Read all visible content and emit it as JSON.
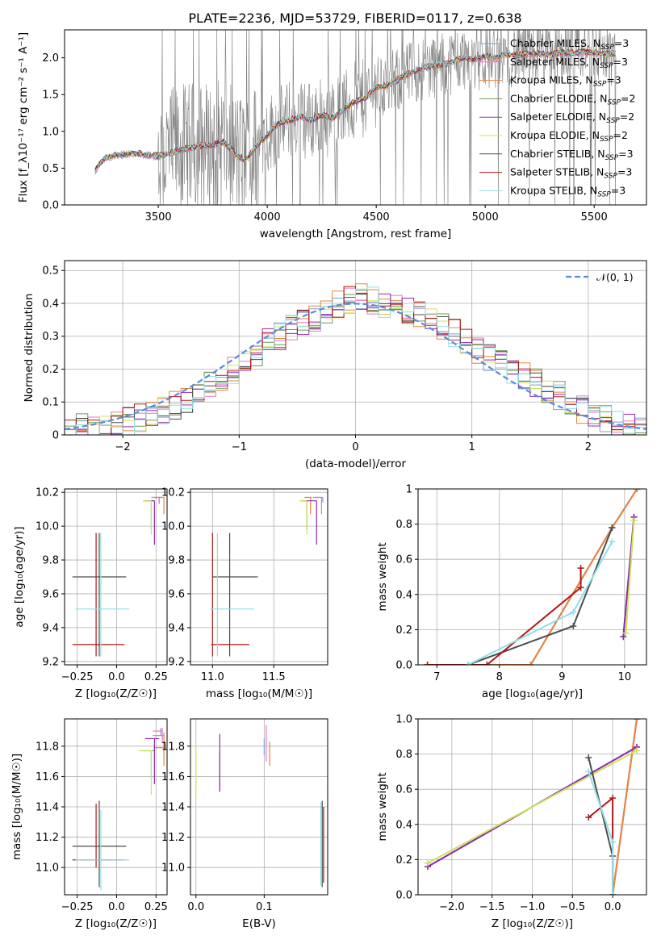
{
  "figure": {
    "title": "PLATE=2236, MJD=53729, FIBERID=0117, z=0.638"
  },
  "colors": {
    "Chabrier MILES": "#7f9fd1",
    "Salpeter MILES": "#e377c2",
    "Kroupa MILES": "#e6853d",
    "Chabrier ELODIE": "#6b9a5c",
    "Salpeter ELODIE": "#8e2bb0",
    "Kroupa ELODIE": "#cfe35a",
    "Chabrier STELIB": "#4d4d4d",
    "Salpeter STELIB": "#b01616",
    "Kroupa STELIB": "#8fdfe6",
    "normal": "#5b8bd9",
    "data": "#808080",
    "grid": "#b0b0b0"
  },
  "chart_data": [
    {
      "id": "spectrum",
      "type": "line",
      "xlabel": "wavelength [Angstrom, rest frame]",
      "ylabel": "Flux [f_λ10⁻¹⁷ erg cm⁻² s⁻¹ A⁻¹]",
      "xlim": [
        3070,
        5740
      ],
      "ylim": [
        0,
        2.38
      ],
      "xticks": [
        3500,
        4000,
        4500,
        5000,
        5500
      ],
      "yticks": [
        0.0,
        0.5,
        1.0,
        1.5,
        2.0
      ],
      "grid": false,
      "legend_position": "upper right",
      "legend": [
        "Chabrier MILES, N_SSP=3",
        "Salpeter MILES, N_SSP=3",
        "Kroupa MILES, N_SSP=3",
        "Chabrier ELODIE, N_SSP=2",
        "Salpeter ELODIE, N_SSP=2",
        "Kroupa ELODIE, N_SSP=2",
        "Chabrier STELIB, N_SSP=3",
        "Salpeter STELIB, N_SSP=3",
        "Kroupa STELIB, N_SSP=3"
      ],
      "model_continuum": {
        "x": [
          3210,
          3230,
          3260,
          3300,
          3350,
          3400,
          3450,
          3500,
          3550,
          3600,
          3650,
          3700,
          3750,
          3800,
          3850,
          3900,
          3950,
          4000,
          4050,
          4100,
          4150,
          4200,
          4250,
          4300,
          4350,
          4400,
          4450,
          4500,
          4550,
          4600,
          4650,
          4700,
          4750,
          4800,
          4850,
          4900,
          4950,
          5000,
          5050,
          5100,
          5150,
          5200,
          5250,
          5300,
          5350,
          5400,
          5450,
          5500,
          5550,
          5600
        ],
        "y": [
          0.45,
          0.56,
          0.64,
          0.67,
          0.69,
          0.7,
          0.68,
          0.66,
          0.7,
          0.75,
          0.78,
          0.8,
          0.82,
          0.85,
          0.7,
          0.6,
          0.8,
          0.95,
          1.1,
          1.15,
          1.2,
          1.15,
          1.22,
          1.18,
          1.3,
          1.4,
          1.45,
          1.6,
          1.62,
          1.7,
          1.78,
          1.85,
          1.88,
          1.9,
          1.95,
          2.0,
          1.98,
          2.02,
          2.0,
          2.05,
          2.03,
          2.06,
          2.05,
          2.04,
          2.07,
          2.06,
          2.08,
          2.07,
          2.05,
          2.06
        ]
      }
    },
    {
      "id": "residuals",
      "type": "line",
      "xlabel": "(data-model)/error",
      "ylabel": "Normed distribution",
      "xlim": [
        -2.5,
        2.5
      ],
      "ylim": [
        0,
        0.53
      ],
      "xticks": [
        -2,
        -1,
        0,
        1,
        2
      ],
      "yticks": [
        0.0,
        0.1,
        0.2,
        0.3,
        0.4,
        0.5
      ],
      "grid": true,
      "legend_position": "upper right",
      "legend": [
        "𝒩(0, 1)"
      ],
      "normal": {
        "mu": 0,
        "sigma": 1,
        "style": "dashed"
      },
      "bin_width": 0.1,
      "bin_start": -2.5,
      "histogram_base": [
        0.01,
        0.02,
        0.02,
        0.03,
        0.03,
        0.04,
        0.05,
        0.06,
        0.07,
        0.09,
        0.11,
        0.14,
        0.16,
        0.18,
        0.2,
        0.22,
        0.25,
        0.28,
        0.3,
        0.32,
        0.34,
        0.36,
        0.38,
        0.4,
        0.41,
        0.42,
        0.41,
        0.4,
        0.39,
        0.38,
        0.37,
        0.35,
        0.33,
        0.31,
        0.28,
        0.26,
        0.24,
        0.22,
        0.2,
        0.18,
        0.16,
        0.14,
        0.12,
        0.1,
        0.08,
        0.06,
        0.05,
        0.04,
        0.03,
        0.02
      ]
    },
    {
      "id": "z-age",
      "type": "scatter",
      "xlabel": "Z [log₁₀(Z/Z☉)]",
      "ylabel": "age  [log₁₀(age/yr)]",
      "xlim": [
        -0.33,
        0.32
      ],
      "ylim": [
        9.18,
        10.22
      ],
      "xticks": [
        -0.25,
        0.0,
        0.25
      ],
      "yticks": [
        9.2,
        9.4,
        9.6,
        9.8,
        10.0,
        10.2
      ],
      "grid": true,
      "points": [
        {
          "model": "Chabrier MILES",
          "x": 0.27,
          "y": 10.17,
          "xerr": [
            0.05,
            0.02
          ],
          "yerr": [
            0.03,
            0.0
          ]
        },
        {
          "model": "Salpeter MILES",
          "x": 0.27,
          "y": 10.17,
          "xerr": [
            0.03,
            0.02
          ],
          "yerr": [
            0.04,
            0.0
          ]
        },
        {
          "model": "Kroupa MILES",
          "x": 0.3,
          "y": 10.17,
          "xerr": [
            0.07,
            0.0
          ],
          "yerr": [
            0.1,
            0.0
          ]
        },
        {
          "model": "Chabrier ELODIE",
          "x": 0.22,
          "y": 10.15,
          "xerr": [
            0.05,
            0.01
          ],
          "yerr": [
            0.17,
            0.0
          ]
        },
        {
          "model": "Salpeter ELODIE",
          "x": 0.24,
          "y": 10.15,
          "xerr": [
            0.07,
            0.0
          ],
          "yerr": [
            0.26,
            0.0
          ]
        },
        {
          "model": "Kroupa ELODIE",
          "x": 0.22,
          "y": 10.15,
          "xerr": [
            0.05,
            0.0
          ],
          "yerr": [
            0.2,
            0.0
          ]
        },
        {
          "model": "Chabrier STELIB",
          "x": -0.11,
          "y": 9.7,
          "xerr": [
            0.17,
            0.17
          ],
          "yerr": [
            0.47,
            0.26
          ]
        },
        {
          "model": "Salpeter STELIB",
          "x": -0.13,
          "y": 9.3,
          "xerr": [
            0.15,
            0.18
          ],
          "yerr": [
            0.07,
            0.66
          ]
        },
        {
          "model": "Kroupa STELIB",
          "x": -0.1,
          "y": 9.51,
          "xerr": [
            0.16,
            0.18
          ],
          "yerr": [
            0.28,
            0.45
          ]
        }
      ]
    },
    {
      "id": "mass-age",
      "type": "scatter",
      "xlabel": "mass [log₁₀(M/M☉)]",
      "ylabel": "",
      "xlim": [
        10.82,
        11.94
      ],
      "ylim": [
        9.18,
        10.22
      ],
      "xticks": [
        11.0,
        11.5
      ],
      "yticks": [
        9.2,
        9.4,
        9.6,
        9.8,
        10.0,
        10.2
      ],
      "grid": true,
      "points": [
        {
          "model": "Chabrier MILES",
          "x": 11.9,
          "y": 10.17,
          "xerr": [
            0.08,
            0.0
          ],
          "yerr": [
            0.03,
            0.0
          ]
        },
        {
          "model": "Salpeter MILES",
          "x": 11.89,
          "y": 10.17,
          "xerr": [
            0.05,
            0.0
          ],
          "yerr": [
            0.1,
            0.0
          ]
        },
        {
          "model": "Kroupa MILES",
          "x": 11.8,
          "y": 10.17,
          "xerr": [
            0.05,
            0.01
          ],
          "yerr": [
            0.1,
            0.0
          ]
        },
        {
          "model": "Chabrier ELODIE",
          "x": 11.77,
          "y": 10.15,
          "xerr": [
            0.05,
            0.01
          ],
          "yerr": [
            0.17,
            0.0
          ]
        },
        {
          "model": "Salpeter ELODIE",
          "x": 11.85,
          "y": 10.15,
          "xerr": [
            0.12,
            0.0
          ],
          "yerr": [
            0.26,
            0.0
          ]
        },
        {
          "model": "Kroupa ELODIE",
          "x": 11.77,
          "y": 10.15,
          "xerr": [
            0.06,
            0.0
          ],
          "yerr": [
            0.2,
            0.0
          ]
        },
        {
          "model": "Chabrier STELIB",
          "x": 11.14,
          "y": 9.7,
          "xerr": [
            0.14,
            0.23
          ],
          "yerr": [
            0.47,
            0.26
          ]
        },
        {
          "model": "Salpeter STELIB",
          "x": 11.0,
          "y": 9.3,
          "xerr": [
            0.01,
            0.3
          ],
          "yerr": [
            0.07,
            0.66
          ]
        },
        {
          "model": "Kroupa STELIB",
          "x": 11.04,
          "y": 9.51,
          "xerr": [
            0.06,
            0.3
          ],
          "yerr": [
            0.28,
            0.45
          ]
        }
      ]
    },
    {
      "id": "age-weight",
      "type": "line",
      "xlabel": "age  [log₁₀(age/yr)]",
      "ylabel": "mass weight",
      "xlim": [
        6.7,
        10.35
      ],
      "ylim": [
        0,
        1.0
      ],
      "xticks": [
        7,
        8,
        9,
        10
      ],
      "yticks": [
        0.0,
        0.2,
        0.4,
        0.6,
        0.8,
        1.0
      ],
      "grid": true,
      "series": [
        {
          "model": "Chabrier MILES",
          "x": [
            6.85,
            8.5,
            9.8,
            10.2
          ],
          "y": [
            0.0,
            0.0,
            0.78,
            1.0
          ]
        },
        {
          "model": "Salpeter MILES",
          "x": [
            6.85,
            8.5,
            9.8,
            10.2
          ],
          "y": [
            0.0,
            0.0,
            0.78,
            1.0
          ]
        },
        {
          "model": "Kroupa MILES",
          "x": [
            6.85,
            8.5,
            9.8,
            10.2
          ],
          "y": [
            0.0,
            0.0,
            0.78,
            1.0
          ]
        },
        {
          "model": "Chabrier ELODIE",
          "x": [
            9.98,
            10.15
          ],
          "y": [
            0.16,
            0.84
          ]
        },
        {
          "model": "Salpeter ELODIE",
          "x": [
            9.98,
            10.15
          ],
          "y": [
            0.16,
            0.84
          ]
        },
        {
          "model": "Kroupa ELODIE",
          "x": [
            10.02,
            10.15
          ],
          "y": [
            0.18,
            0.82
          ]
        },
        {
          "model": "Chabrier STELIB",
          "x": [
            7.5,
            9.18,
            9.8
          ],
          "y": [
            0.0,
            0.22,
            0.78
          ]
        },
        {
          "model": "Salpeter STELIB",
          "x": [
            6.85,
            7.8,
            9.3,
            9.3
          ],
          "y": [
            0.0,
            0.0,
            0.44,
            0.55
          ]
        },
        {
          "model": "Kroupa STELIB",
          "x": [
            7.5,
            9.18,
            9.8
          ],
          "y": [
            0.0,
            0.3,
            0.7
          ]
        }
      ]
    },
    {
      "id": "z-mass",
      "type": "scatter",
      "xlabel": "Z [log₁₀(Z/Z☉)]",
      "ylabel": "mass [log₁₀(M/M☉)]",
      "xlim": [
        -0.33,
        0.32
      ],
      "ylim": [
        10.82,
        11.98
      ],
      "xticks": [
        -0.25,
        0.0,
        0.25
      ],
      "yticks": [
        11.0,
        11.2,
        11.4,
        11.6,
        11.8
      ],
      "grid": true,
      "points": [
        {
          "model": "Chabrier MILES",
          "x": 0.28,
          "y": 11.87,
          "xerr": [
            0.05,
            0.02
          ],
          "yerr": [
            0.0,
            0.05
          ]
        },
        {
          "model": "Salpeter MILES",
          "x": 0.29,
          "y": 11.9,
          "xerr": [
            0.06,
            0.0
          ],
          "yerr": [
            0.08,
            0.02
          ]
        },
        {
          "model": "Kroupa MILES",
          "x": 0.3,
          "y": 11.79,
          "xerr": [
            0.06,
            0.0
          ],
          "yerr": [
            0.12,
            0.1
          ]
        },
        {
          "model": "Chabrier ELODIE",
          "x": 0.22,
          "y": 11.77,
          "xerr": [
            0.06,
            0.02
          ],
          "yerr": [
            0.18,
            0.0
          ]
        },
        {
          "model": "Salpeter ELODIE",
          "x": 0.24,
          "y": 11.85,
          "xerr": [
            0.06,
            0.03
          ],
          "yerr": [
            0.3,
            0.0
          ]
        },
        {
          "model": "Kroupa ELODIE",
          "x": 0.22,
          "y": 11.77,
          "xerr": [
            0.08,
            0.01
          ],
          "yerr": [
            0.29,
            0.0
          ]
        },
        {
          "model": "Chabrier STELIB",
          "x": -0.11,
          "y": 11.14,
          "xerr": [
            0.17,
            0.17
          ],
          "yerr": [
            0.27,
            0.3
          ]
        },
        {
          "model": "Salpeter STELIB",
          "x": -0.13,
          "y": 11.05,
          "xerr": [
            0.15,
            0.18
          ],
          "yerr": [
            0.05,
            0.37
          ]
        },
        {
          "model": "Kroupa STELIB",
          "x": -0.1,
          "y": 11.05,
          "xerr": [
            0.16,
            0.18
          ],
          "yerr": [
            0.2,
            0.33
          ]
        }
      ]
    },
    {
      "id": "ebv-mass",
      "type": "scatter",
      "xlabel": "E(B-V)",
      "ylabel": "",
      "xlim": [
        -0.008,
        0.193
      ],
      "ylim": [
        10.82,
        11.98
      ],
      "xticks": [
        0.0,
        0.1
      ],
      "yticks": [
        11.0,
        11.2,
        11.4,
        11.6,
        11.8
      ],
      "grid": true,
      "points": [
        {
          "model": "Chabrier MILES",
          "x": 0.1,
          "y": 11.8,
          "yerr": [
            0.06,
            0.05
          ]
        },
        {
          "model": "Salpeter MILES",
          "x": 0.103,
          "y": 11.83,
          "yerr": [
            0.13,
            0.11
          ]
        },
        {
          "model": "Kroupa MILES",
          "x": 0.108,
          "y": 11.75,
          "yerr": [
            0.08,
            0.08
          ]
        },
        {
          "model": "Chabrier ELODIE",
          "x": 0.035,
          "y": 11.7,
          "yerr": [
            0.2,
            0.06
          ]
        },
        {
          "model": "Salpeter ELODIE",
          "x": 0.035,
          "y": 11.72,
          "yerr": [
            0.22,
            0.16
          ]
        },
        {
          "model": "Kroupa ELODIE",
          "x": 0.0,
          "y": 11.6,
          "yerr": [
            0.13,
            0.2
          ]
        },
        {
          "model": "Chabrier STELIB",
          "x": 0.185,
          "y": 11.14,
          "yerr": [
            0.27,
            0.3
          ]
        },
        {
          "model": "Salpeter STELIB",
          "x": 0.187,
          "y": 11.1,
          "yerr": [
            0.2,
            0.3
          ]
        },
        {
          "model": "Kroupa STELIB",
          "x": 0.183,
          "y": 11.1,
          "yerr": [
            0.22,
            0.33
          ]
        }
      ]
    },
    {
      "id": "z-weight",
      "type": "line",
      "xlabel": "Z [log₁₀(Z/Z☉)]",
      "ylabel": "mass weight",
      "xlim": [
        -2.42,
        0.42
      ],
      "ylim": [
        0,
        1.0
      ],
      "xticks": [
        -2.0,
        -1.5,
        -1.0,
        -0.5,
        0.0
      ],
      "yticks": [
        0.0,
        0.2,
        0.4,
        0.6,
        0.8,
        1.0
      ],
      "grid": true,
      "series": [
        {
          "model": "Chabrier MILES",
          "x": [
            0.0,
            0.3
          ],
          "y": [
            0.0,
            1.0
          ]
        },
        {
          "model": "Salpeter MILES",
          "x": [
            0.0,
            0.3
          ],
          "y": [
            0.0,
            1.0
          ]
        },
        {
          "model": "Kroupa MILES",
          "x": [
            0.0,
            0.3
          ],
          "y": [
            0.0,
            1.0
          ]
        },
        {
          "model": "Chabrier ELODIE",
          "x": [
            -2.3,
            0.3
          ],
          "y": [
            0.16,
            0.84
          ]
        },
        {
          "model": "Salpeter ELODIE",
          "x": [
            -2.3,
            0.3
          ],
          "y": [
            0.16,
            0.84
          ]
        },
        {
          "model": "Kroupa ELODIE",
          "x": [
            -2.3,
            0.3
          ],
          "y": [
            0.18,
            0.82
          ]
        },
        {
          "model": "Chabrier STELIB",
          "x": [
            -0.3,
            0.0,
            0.0
          ],
          "y": [
            0.78,
            0.22,
            0.0
          ]
        },
        {
          "model": "Salpeter STELIB",
          "x": [
            -0.3,
            0.0,
            0.0
          ],
          "y": [
            0.44,
            0.55,
            0.0
          ]
        },
        {
          "model": "Kroupa STELIB",
          "x": [
            -0.3,
            0.0,
            0.0
          ],
          "y": [
            0.7,
            0.3,
            0.0
          ]
        }
      ]
    }
  ]
}
